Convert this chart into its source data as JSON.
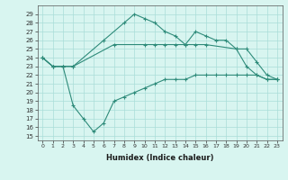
{
  "xlabel": "Humidex (Indice chaleur)",
  "xlim": [
    -0.5,
    23.5
  ],
  "ylim": [
    14.5,
    30
  ],
  "line1_x": [
    0,
    1,
    2,
    3,
    6,
    8,
    9,
    10,
    11,
    12,
    13,
    14,
    15,
    16,
    17,
    18,
    19,
    20,
    21,
    22,
    23
  ],
  "line1_y": [
    24,
    23,
    23,
    23,
    26,
    28,
    29,
    28.5,
    28,
    27,
    26.5,
    25.5,
    27,
    26.5,
    26,
    26,
    25,
    23,
    22,
    21.5,
    21.5
  ],
  "line2_x": [
    0,
    1,
    2,
    3,
    7,
    10,
    11,
    12,
    13,
    14,
    15,
    16,
    19,
    20,
    21,
    22,
    23
  ],
  "line2_y": [
    24,
    23,
    23,
    23,
    25.5,
    25.5,
    25.5,
    25.5,
    25.5,
    25.5,
    25.5,
    25.5,
    25,
    25,
    23.5,
    22,
    21.5
  ],
  "line3_x": [
    0,
    1,
    2,
    3,
    4,
    5,
    6,
    7,
    8,
    9,
    10,
    11,
    12,
    13,
    14,
    15,
    16,
    17,
    18,
    19,
    20,
    21,
    22,
    23
  ],
  "line3_y": [
    24,
    23,
    23,
    18.5,
    17,
    15.5,
    16.5,
    19,
    19.5,
    20,
    20.5,
    21,
    21.5,
    21.5,
    21.5,
    22,
    22,
    22,
    22,
    22,
    22,
    22,
    21.5,
    21.5
  ],
  "color": "#2e8b7a",
  "background": "#d8f5f0",
  "grid_color": "#aaddd8",
  "yticks": [
    15,
    16,
    17,
    18,
    19,
    20,
    21,
    22,
    23,
    24,
    25,
    26,
    27,
    28,
    29
  ],
  "xticks": [
    0,
    1,
    2,
    3,
    4,
    5,
    6,
    7,
    8,
    9,
    10,
    11,
    12,
    13,
    14,
    15,
    16,
    17,
    18,
    19,
    20,
    21,
    22,
    23
  ]
}
